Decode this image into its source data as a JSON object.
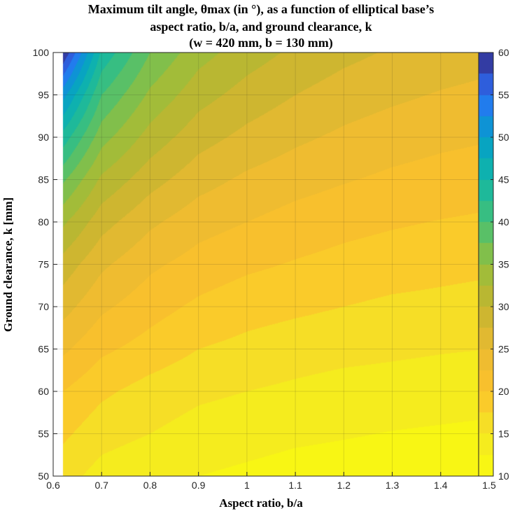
{
  "chart_data": {
    "type": "heatmap",
    "subtype": "filled-contour",
    "title": [
      "Maximum tilt angle, θmax (in °), as a function of elliptical base’s",
      "aspect ratio, b/a, and ground clearance, k",
      "(w = 420 mm, b = 130 mm)"
    ],
    "xlabel": "Aspect ratio, b/a",
    "ylabel": "Ground clearance, k [mm]",
    "xlim": [
      0.6,
      1.5
    ],
    "ylim": [
      50,
      100
    ],
    "x_data_range": [
      0.62,
      1.5
    ],
    "xticks": [
      "0.6",
      "0.7",
      "0.8",
      "0.9",
      "1",
      "1.1",
      "1.2",
      "1.3",
      "1.4",
      "1.5"
    ],
    "yticks": [
      "50",
      "55",
      "60",
      "65",
      "70",
      "75",
      "80",
      "85",
      "90",
      "95",
      "100"
    ],
    "colorbar": {
      "range": [
        10,
        60
      ],
      "ticks": [
        "10",
        "15",
        "20",
        "25",
        "30",
        "35",
        "40",
        "45",
        "50",
        "55",
        "60"
      ],
      "colormap": "parula"
    },
    "grid": true,
    "sampled_values": {
      "x": [
        0.62,
        0.7,
        0.8,
        0.9,
        1.0,
        1.1,
        1.2,
        1.3,
        1.4,
        1.5
      ],
      "y": [
        50,
        55,
        60,
        65,
        70,
        75,
        80,
        85,
        90,
        95,
        100
      ],
      "z": [
        [
          16,
          14,
          13,
          12.5,
          12,
          11.5,
          11.3,
          11.1,
          11,
          11
        ],
        [
          18,
          16,
          15,
          14,
          13.5,
          13,
          12.7,
          12.4,
          12.2,
          12
        ],
        [
          20,
          18,
          16.5,
          15.5,
          15,
          14.5,
          14,
          13.8,
          13.6,
          13.4
        ],
        [
          23,
          20.5,
          19,
          17.5,
          16.8,
          16.2,
          15.8,
          15.5,
          15.2,
          15
        ],
        [
          26,
          23,
          21,
          19.5,
          18.5,
          18,
          17.5,
          17,
          16.8,
          16.5
        ],
        [
          29,
          25.5,
          23,
          21.5,
          20.5,
          19.8,
          19.2,
          18.7,
          18.3,
          18
        ],
        [
          33,
          28.5,
          25.5,
          23.5,
          22.5,
          21.5,
          20.8,
          20.3,
          19.9,
          19.6
        ],
        [
          38,
          32,
          28.5,
          26,
          24.5,
          23.5,
          22.7,
          22,
          21.5,
          21.1
        ],
        [
          44,
          36,
          31.5,
          28.5,
          26.8,
          25.5,
          24.5,
          23.7,
          23.1,
          22.7
        ],
        [
          51,
          40,
          34.5,
          31,
          29,
          27.5,
          26.3,
          25.5,
          24.8,
          24.3
        ],
        [
          60,
          44.5,
          37.5,
          33.5,
          31.2,
          29.5,
          28.2,
          27.2,
          26.5,
          25.9
        ]
      ]
    }
  }
}
